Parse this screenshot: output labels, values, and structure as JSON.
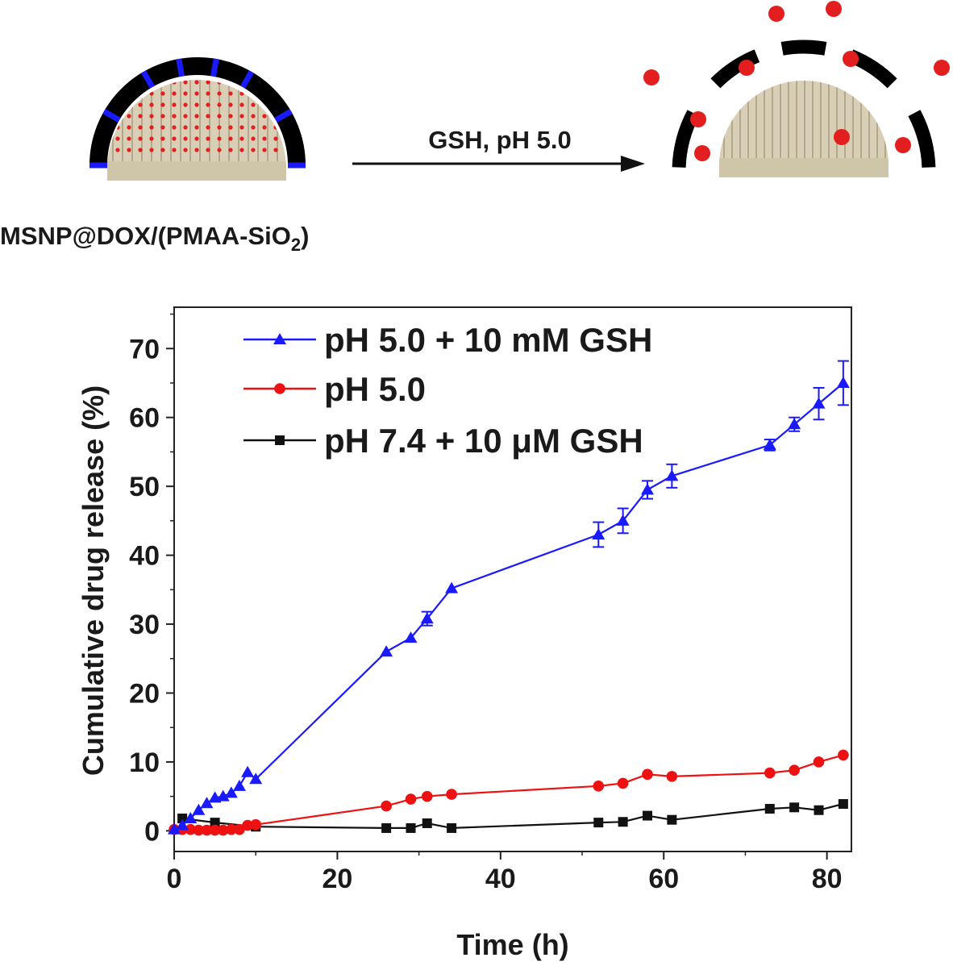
{
  "scheme": {
    "arrow_label": "GSH, pH 5.0",
    "particle_label": "MSNP@DOX/(PMAA-SiO",
    "particle_label_sub": "2",
    "particle_label_end": ")"
  },
  "colors": {
    "blue": "#1a1aff",
    "red": "#ee1111",
    "black": "#111111",
    "shell": "#000000",
    "silica": "#d8cfb6",
    "drug": "#e31e1e"
  },
  "chart_data": {
    "type": "line",
    "title": "",
    "xlabel": "Time (h)",
    "ylabel": "Cumulative drug release (%)",
    "xlim": [
      0,
      83
    ],
    "ylim": [
      -3,
      76
    ],
    "xticks": [
      0,
      20,
      40,
      60,
      80
    ],
    "yticks": [
      0,
      10,
      20,
      30,
      40,
      50,
      60,
      70
    ],
    "legend_position": "top-left",
    "series": [
      {
        "name": "pH 5.0 + 10 mM GSH",
        "color": "#1a1aff",
        "marker": "triangle",
        "x": [
          0,
          1,
          2,
          3,
          4,
          5,
          6,
          7,
          8,
          9,
          10,
          26,
          29,
          31,
          34,
          52,
          55,
          58,
          61,
          73,
          76,
          79,
          82
        ],
        "y": [
          0.2,
          0.8,
          1.8,
          3.0,
          4.0,
          4.8,
          5.0,
          5.5,
          6.5,
          8.5,
          7.5,
          26.0,
          28.0,
          30.8,
          35.2,
          43.0,
          45.0,
          49.5,
          51.5,
          56.0,
          59.0,
          62.0,
          65.0
        ],
        "err": [
          0,
          0,
          0,
          0,
          0,
          0,
          0,
          0,
          0,
          0,
          0,
          0,
          0,
          1.0,
          0,
          1.8,
          1.8,
          1.3,
          1.7,
          0.8,
          1.0,
          2.3,
          3.2
        ]
      },
      {
        "name": "pH 5.0",
        "color": "#ee1111",
        "marker": "circle",
        "x": [
          0,
          1,
          2,
          3,
          4,
          5,
          6,
          7,
          8,
          9,
          10,
          26,
          29,
          31,
          34,
          52,
          55,
          58,
          61,
          73,
          76,
          79,
          82
        ],
        "y": [
          0.2,
          0.2,
          0.2,
          0.1,
          0.1,
          0.1,
          0.1,
          0.2,
          0.2,
          0.8,
          0.9,
          3.6,
          4.6,
          5.0,
          5.3,
          6.5,
          6.9,
          8.2,
          7.9,
          8.4,
          8.8,
          10.0,
          11.0
        ],
        "err": []
      },
      {
        "name": "pH 7.4 + 10 μM GSH",
        "color": "#111111",
        "marker": "square",
        "x": [
          1,
          5,
          10,
          26,
          29,
          31,
          34,
          52,
          55,
          58,
          61,
          73,
          76,
          79,
          82
        ],
        "y": [
          1.8,
          1.2,
          0.6,
          0.4,
          0.4,
          1.1,
          0.4,
          1.2,
          1.3,
          2.2,
          1.6,
          3.2,
          3.4,
          3.0,
          3.9
        ],
        "err": []
      }
    ]
  }
}
